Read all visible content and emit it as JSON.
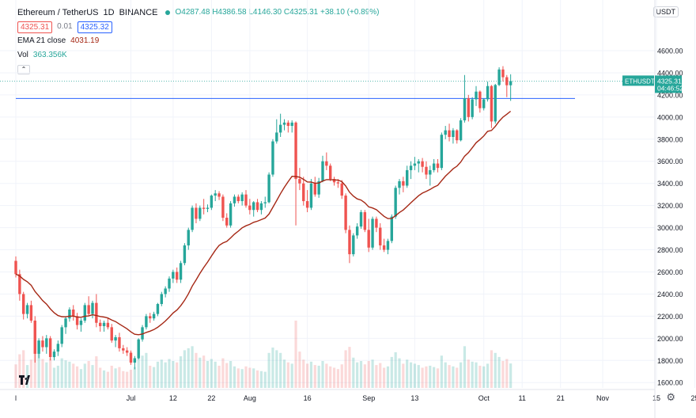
{
  "header": {
    "symbol": "Ethereum / TetherUS",
    "interval": "1D",
    "exchange": "BINANCE",
    "ohlc": {
      "o": "O4287.48",
      "h": "H4386.58",
      "l": "L4146.30",
      "c": "C4325.31",
      "change": "+38.10 (+0.89%)"
    },
    "bid": "4325.31",
    "spread": "0.01",
    "ask": "4325.32",
    "ema_label": "EMA 21 close",
    "ema_value": "4031.19",
    "vol_label": "Vol",
    "vol_value": "363.356K",
    "currency_button": "USDT"
  },
  "colors": {
    "up": "#26a69a",
    "down": "#ef5350",
    "ema": "#a52714",
    "hline": "#2962ff",
    "grid": "#f0f3fa"
  },
  "chart_data": {
    "type": "candlestick",
    "y_ticks": [
      1600,
      1800,
      2000,
      2200,
      2400,
      2600,
      2800,
      3000,
      3200,
      3400,
      3600,
      3800,
      4000,
      4200,
      4400,
      4600
    ],
    "ylim": [
      1480,
      4700
    ],
    "x_labels": [
      {
        "label": "l",
        "date": "2021-06-01"
      },
      {
        "label": "Jul",
        "date": "2021-07-01"
      },
      {
        "label": "12",
        "date": "2021-07-12"
      },
      {
        "label": "22",
        "date": "2021-07-22"
      },
      {
        "label": "Aug",
        "date": "2021-08-01"
      },
      {
        "label": "16",
        "date": "2021-08-16"
      },
      {
        "label": "Sep",
        "date": "2021-09-01"
      },
      {
        "label": "13",
        "date": "2021-09-13"
      },
      {
        "label": "Oct",
        "date": "2021-10-01"
      },
      {
        "label": "11",
        "date": "2021-10-11"
      },
      {
        "label": "21",
        "date": "2021-10-21"
      },
      {
        "label": "Nov",
        "date": "2021-11-01"
      },
      {
        "label": "15",
        "date": "2021-11-15"
      },
      {
        "label": "25",
        "date": "2021-11-25"
      }
    ],
    "xlim": [
      "2021-06-01",
      "2021-11-30"
    ],
    "price_label": {
      "symbol": "ETHUSDT",
      "price": "4325.31",
      "countdown": "04:46:52"
    },
    "horizontal_line": 4168,
    "close_line": 4325.31,
    "start_date": "2021-06-01",
    "candles": [
      {
        "o": 2700,
        "h": 2740,
        "l": 2550,
        "c": 2580,
        "v": 350
      },
      {
        "o": 2580,
        "h": 2620,
        "l": 2340,
        "c": 2400,
        "v": 500
      },
      {
        "o": 2400,
        "h": 2420,
        "l": 2170,
        "c": 2220,
        "v": 560
      },
      {
        "o": 2220,
        "h": 2320,
        "l": 2180,
        "c": 2300,
        "v": 340
      },
      {
        "o": 2300,
        "h": 2340,
        "l": 2140,
        "c": 2160,
        "v": 420
      },
      {
        "o": 2160,
        "h": 2200,
        "l": 1780,
        "c": 1860,
        "v": 900
      },
      {
        "o": 1860,
        "h": 2000,
        "l": 1820,
        "c": 1980,
        "v": 660
      },
      {
        "o": 1980,
        "h": 2020,
        "l": 1880,
        "c": 1920,
        "v": 430
      },
      {
        "o": 1920,
        "h": 2030,
        "l": 1860,
        "c": 2000,
        "v": 380
      },
      {
        "o": 2000,
        "h": 2020,
        "l": 1800,
        "c": 1830,
        "v": 440
      },
      {
        "o": 1830,
        "h": 1900,
        "l": 1800,
        "c": 1880,
        "v": 300
      },
      {
        "o": 1880,
        "h": 1980,
        "l": 1840,
        "c": 1950,
        "v": 330
      },
      {
        "o": 1950,
        "h": 2120,
        "l": 1920,
        "c": 2100,
        "v": 440
      },
      {
        "o": 2100,
        "h": 2200,
        "l": 2040,
        "c": 2180,
        "v": 410
      },
      {
        "o": 2180,
        "h": 2280,
        "l": 2150,
        "c": 2260,
        "v": 390
      },
      {
        "o": 2260,
        "h": 2300,
        "l": 2160,
        "c": 2200,
        "v": 360
      },
      {
        "o": 2200,
        "h": 2230,
        "l": 2080,
        "c": 2120,
        "v": 320
      },
      {
        "o": 2120,
        "h": 2180,
        "l": 2060,
        "c": 2160,
        "v": 280
      },
      {
        "o": 2160,
        "h": 2320,
        "l": 2140,
        "c": 2300,
        "v": 360
      },
      {
        "o": 2300,
        "h": 2380,
        "l": 2200,
        "c": 2220,
        "v": 400
      },
      {
        "o": 2220,
        "h": 2340,
        "l": 2180,
        "c": 2320,
        "v": 340
      },
      {
        "o": 2320,
        "h": 2400,
        "l": 2100,
        "c": 2140,
        "v": 470
      },
      {
        "o": 2140,
        "h": 2170,
        "l": 2060,
        "c": 2110,
        "v": 300
      },
      {
        "o": 2110,
        "h": 2160,
        "l": 2060,
        "c": 2140,
        "v": 260
      },
      {
        "o": 2140,
        "h": 2180,
        "l": 2080,
        "c": 2100,
        "v": 240
      },
      {
        "o": 2100,
        "h": 2130,
        "l": 1960,
        "c": 1980,
        "v": 330
      },
      {
        "o": 1980,
        "h": 2030,
        "l": 1920,
        "c": 2010,
        "v": 290
      },
      {
        "o": 2010,
        "h": 2050,
        "l": 1880,
        "c": 1910,
        "v": 310
      },
      {
        "o": 1910,
        "h": 1940,
        "l": 1860,
        "c": 1890,
        "v": 250
      },
      {
        "o": 1890,
        "h": 1920,
        "l": 1840,
        "c": 1870,
        "v": 240
      },
      {
        "o": 1870,
        "h": 1890,
        "l": 1760,
        "c": 1780,
        "v": 270
      },
      {
        "o": 1780,
        "h": 1840,
        "l": 1720,
        "c": 1820,
        "v": 310
      },
      {
        "o": 1820,
        "h": 2000,
        "l": 1810,
        "c": 1990,
        "v": 450
      },
      {
        "o": 1990,
        "h": 2120,
        "l": 1970,
        "c": 2100,
        "v": 480
      },
      {
        "o": 2100,
        "h": 2220,
        "l": 2080,
        "c": 2200,
        "v": 520
      },
      {
        "o": 2200,
        "h": 2230,
        "l": 2140,
        "c": 2180,
        "v": 330
      },
      {
        "o": 2180,
        "h": 2240,
        "l": 2160,
        "c": 2220,
        "v": 310
      },
      {
        "o": 2220,
        "h": 2320,
        "l": 2200,
        "c": 2310,
        "v": 390
      },
      {
        "o": 2310,
        "h": 2420,
        "l": 2290,
        "c": 2400,
        "v": 420
      },
      {
        "o": 2400,
        "h": 2470,
        "l": 2370,
        "c": 2450,
        "v": 380
      },
      {
        "o": 2450,
        "h": 2560,
        "l": 2420,
        "c": 2540,
        "v": 430
      },
      {
        "o": 2540,
        "h": 2620,
        "l": 2500,
        "c": 2600,
        "v": 400
      },
      {
        "o": 2600,
        "h": 2640,
        "l": 2500,
        "c": 2530,
        "v": 380
      },
      {
        "o": 2530,
        "h": 2700,
        "l": 2500,
        "c": 2680,
        "v": 470
      },
      {
        "o": 2680,
        "h": 2860,
        "l": 2660,
        "c": 2840,
        "v": 560
      },
      {
        "o": 2840,
        "h": 3000,
        "l": 2800,
        "c": 2980,
        "v": 590
      },
      {
        "o": 2980,
        "h": 3200,
        "l": 2960,
        "c": 3180,
        "v": 620
      },
      {
        "o": 3180,
        "h": 3220,
        "l": 3040,
        "c": 3080,
        "v": 520
      },
      {
        "o": 3080,
        "h": 3200,
        "l": 3060,
        "c": 3180,
        "v": 450
      },
      {
        "o": 3180,
        "h": 3260,
        "l": 3120,
        "c": 3170,
        "v": 480
      },
      {
        "o": 3170,
        "h": 3210,
        "l": 3140,
        "c": 3180,
        "v": 400
      },
      {
        "o": 3180,
        "h": 3300,
        "l": 3160,
        "c": 3290,
        "v": 430
      },
      {
        "o": 3290,
        "h": 3340,
        "l": 3240,
        "c": 3310,
        "v": 390
      },
      {
        "o": 3310,
        "h": 3330,
        "l": 3250,
        "c": 3280,
        "v": 330
      },
      {
        "o": 3280,
        "h": 3300,
        "l": 3060,
        "c": 3090,
        "v": 440
      },
      {
        "o": 3090,
        "h": 3130,
        "l": 3000,
        "c": 3020,
        "v": 370
      },
      {
        "o": 3020,
        "h": 3240,
        "l": 3000,
        "c": 3220,
        "v": 400
      },
      {
        "o": 3220,
        "h": 3300,
        "l": 3190,
        "c": 3280,
        "v": 320
      },
      {
        "o": 3280,
        "h": 3300,
        "l": 3220,
        "c": 3240,
        "v": 290
      },
      {
        "o": 3240,
        "h": 3320,
        "l": 3200,
        "c": 3300,
        "v": 280
      },
      {
        "o": 3300,
        "h": 3340,
        "l": 3180,
        "c": 3200,
        "v": 320
      },
      {
        "o": 3200,
        "h": 3260,
        "l": 3120,
        "c": 3160,
        "v": 300
      },
      {
        "o": 3160,
        "h": 3240,
        "l": 3100,
        "c": 3230,
        "v": 290
      },
      {
        "o": 3230,
        "h": 3260,
        "l": 3140,
        "c": 3160,
        "v": 260
      },
      {
        "o": 3160,
        "h": 3240,
        "l": 3120,
        "c": 3220,
        "v": 250
      },
      {
        "o": 3220,
        "h": 3280,
        "l": 3180,
        "c": 3230,
        "v": 240
      },
      {
        "o": 3230,
        "h": 3500,
        "l": 3220,
        "c": 3480,
        "v": 520
      },
      {
        "o": 3480,
        "h": 3800,
        "l": 3460,
        "c": 3780,
        "v": 600
      },
      {
        "o": 3780,
        "h": 3980,
        "l": 3760,
        "c": 3860,
        "v": 560
      },
      {
        "o": 3860,
        "h": 4030,
        "l": 3820,
        "c": 3930,
        "v": 520
      },
      {
        "o": 3930,
        "h": 3980,
        "l": 3880,
        "c": 3950,
        "v": 420
      },
      {
        "o": 3950,
        "h": 3970,
        "l": 3860,
        "c": 3920,
        "v": 380
      },
      {
        "o": 3920,
        "h": 3970,
        "l": 3860,
        "c": 3950,
        "v": 360
      },
      {
        "o": 3950,
        "h": 3960,
        "l": 3020,
        "c": 3440,
        "v": 1000
      },
      {
        "o": 3440,
        "h": 3540,
        "l": 3340,
        "c": 3400,
        "v": 540
      },
      {
        "o": 3400,
        "h": 3460,
        "l": 3200,
        "c": 3240,
        "v": 420
      },
      {
        "o": 3240,
        "h": 3340,
        "l": 3140,
        "c": 3180,
        "v": 360
      },
      {
        "o": 3180,
        "h": 3440,
        "l": 3160,
        "c": 3400,
        "v": 390
      },
      {
        "o": 3400,
        "h": 3460,
        "l": 3280,
        "c": 3300,
        "v": 340
      },
      {
        "o": 3300,
        "h": 3450,
        "l": 3270,
        "c": 3420,
        "v": 330
      },
      {
        "o": 3420,
        "h": 3650,
        "l": 3410,
        "c": 3600,
        "v": 400
      },
      {
        "o": 3600,
        "h": 3680,
        "l": 3520,
        "c": 3560,
        "v": 360
      },
      {
        "o": 3560,
        "h": 3580,
        "l": 3420,
        "c": 3440,
        "v": 320
      },
      {
        "o": 3440,
        "h": 3460,
        "l": 3380,
        "c": 3410,
        "v": 300
      },
      {
        "o": 3410,
        "h": 3440,
        "l": 3360,
        "c": 3400,
        "v": 280
      },
      {
        "o": 3400,
        "h": 3430,
        "l": 3260,
        "c": 3290,
        "v": 350
      },
      {
        "o": 3290,
        "h": 3310,
        "l": 2950,
        "c": 2980,
        "v": 560
      },
      {
        "o": 2980,
        "h": 3020,
        "l": 2680,
        "c": 2760,
        "v": 610
      },
      {
        "o": 2760,
        "h": 2950,
        "l": 2740,
        "c": 2930,
        "v": 450
      },
      {
        "o": 2930,
        "h": 3040,
        "l": 2900,
        "c": 3010,
        "v": 380
      },
      {
        "o": 3010,
        "h": 3160,
        "l": 2990,
        "c": 3140,
        "v": 400
      },
      {
        "o": 3140,
        "h": 3160,
        "l": 2960,
        "c": 2980,
        "v": 350
      },
      {
        "o": 2980,
        "h": 3080,
        "l": 2780,
        "c": 2820,
        "v": 400
      },
      {
        "o": 2820,
        "h": 3100,
        "l": 2800,
        "c": 3080,
        "v": 420
      },
      {
        "o": 3080,
        "h": 3100,
        "l": 2960,
        "c": 3000,
        "v": 340
      },
      {
        "o": 3000,
        "h": 3040,
        "l": 2800,
        "c": 2840,
        "v": 370
      },
      {
        "o": 2840,
        "h": 2900,
        "l": 2780,
        "c": 2800,
        "v": 300
      },
      {
        "o": 2800,
        "h": 2900,
        "l": 2760,
        "c": 2880,
        "v": 320
      },
      {
        "o": 2880,
        "h": 3120,
        "l": 2860,
        "c": 3100,
        "v": 460
      },
      {
        "o": 3100,
        "h": 3380,
        "l": 3080,
        "c": 3360,
        "v": 530
      },
      {
        "o": 3360,
        "h": 3440,
        "l": 3300,
        "c": 3420,
        "v": 440
      },
      {
        "o": 3420,
        "h": 3460,
        "l": 3320,
        "c": 3380,
        "v": 360
      },
      {
        "o": 3380,
        "h": 3560,
        "l": 3360,
        "c": 3520,
        "v": 420
      },
      {
        "o": 3520,
        "h": 3600,
        "l": 3440,
        "c": 3560,
        "v": 380
      },
      {
        "o": 3560,
        "h": 3640,
        "l": 3520,
        "c": 3580,
        "v": 360
      },
      {
        "o": 3580,
        "h": 3620,
        "l": 3500,
        "c": 3600,
        "v": 340
      },
      {
        "o": 3600,
        "h": 3630,
        "l": 3500,
        "c": 3550,
        "v": 300
      },
      {
        "o": 3550,
        "h": 3600,
        "l": 3440,
        "c": 3480,
        "v": 320
      },
      {
        "o": 3480,
        "h": 3560,
        "l": 3380,
        "c": 3520,
        "v": 330
      },
      {
        "o": 3520,
        "h": 3620,
        "l": 3500,
        "c": 3580,
        "v": 310
      },
      {
        "o": 3580,
        "h": 3620,
        "l": 3500,
        "c": 3540,
        "v": 290
      },
      {
        "o": 3540,
        "h": 3860,
        "l": 3520,
        "c": 3840,
        "v": 480
      },
      {
        "o": 3840,
        "h": 3920,
        "l": 3800,
        "c": 3880,
        "v": 380
      },
      {
        "o": 3880,
        "h": 3940,
        "l": 3780,
        "c": 3820,
        "v": 340
      },
      {
        "o": 3820,
        "h": 3900,
        "l": 3760,
        "c": 3880,
        "v": 320
      },
      {
        "o": 3880,
        "h": 3890,
        "l": 3760,
        "c": 3790,
        "v": 300
      },
      {
        "o": 3790,
        "h": 3990,
        "l": 3780,
        "c": 3970,
        "v": 380
      },
      {
        "o": 3970,
        "h": 4380,
        "l": 3950,
        "c": 4170,
        "v": 620
      },
      {
        "o": 4170,
        "h": 4200,
        "l": 3960,
        "c": 4000,
        "v": 420
      },
      {
        "o": 4000,
        "h": 4180,
        "l": 3980,
        "c": 4160,
        "v": 390
      },
      {
        "o": 4160,
        "h": 4280,
        "l": 4100,
        "c": 4230,
        "v": 380
      },
      {
        "o": 4230,
        "h": 4240,
        "l": 4040,
        "c": 4080,
        "v": 330
      },
      {
        "o": 4080,
        "h": 4170,
        "l": 4060,
        "c": 4160,
        "v": 320
      },
      {
        "o": 4160,
        "h": 4320,
        "l": 4140,
        "c": 4280,
        "v": 360
      },
      {
        "o": 4280,
        "h": 4290,
        "l": 3900,
        "c": 3960,
        "v": 560
      },
      {
        "o": 3960,
        "h": 4300,
        "l": 3940,
        "c": 4290,
        "v": 520
      },
      {
        "o": 4290,
        "h": 4450,
        "l": 4280,
        "c": 4430,
        "v": 460
      },
      {
        "o": 4430,
        "h": 4460,
        "l": 4320,
        "c": 4360,
        "v": 400
      },
      {
        "o": 4360,
        "h": 4380,
        "l": 4180,
        "c": 4287.48,
        "v": 430
      },
      {
        "o": 4287.48,
        "h": 4386.58,
        "l": 4146.3,
        "c": 4325.31,
        "v": 363.356
      }
    ]
  }
}
